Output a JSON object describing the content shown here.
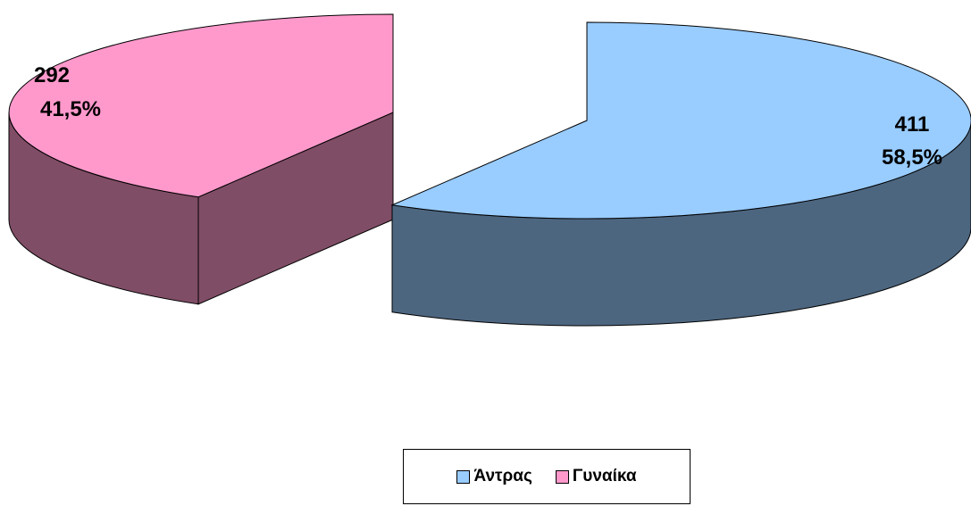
{
  "chart_data": {
    "type": "pie",
    "style": "3d-exploded",
    "slices": [
      {
        "key": "male",
        "label": "Άντρας",
        "value": 411,
        "percent_label": "58,5%",
        "value_label": "411",
        "color_top": "#99CCFF",
        "color_side": "#4D6680"
      },
      {
        "key": "female",
        "label": "Γυναίκα",
        "value": 292,
        "percent_label": "41,5%",
        "value_label": "292",
        "color_top": "#FF99CC",
        "color_side": "#804D66"
      }
    ],
    "legend": {
      "placement": "bottom-center",
      "bordered": true
    }
  }
}
